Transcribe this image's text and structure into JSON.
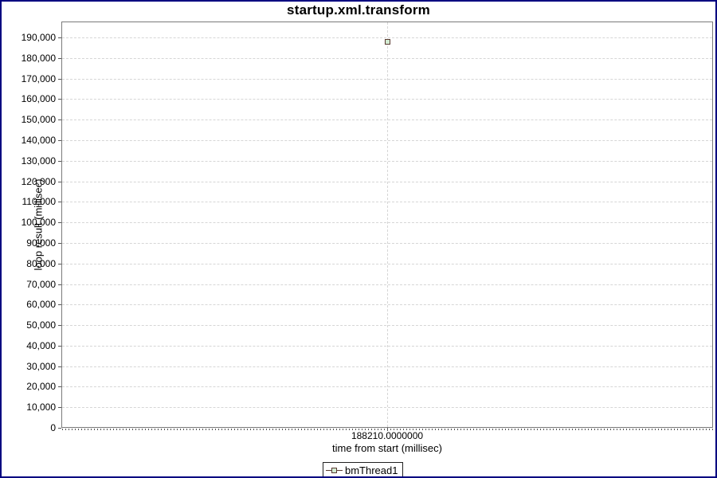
{
  "window": {
    "border_color": "#000080",
    "background": "#ffffff"
  },
  "chart_data": {
    "type": "scatter",
    "title": "startup.xml.transform",
    "xlabel": "time from start (millisec)",
    "ylabel": "loop result (millisec)",
    "grid": true,
    "legend_position": "bottom",
    "xlim": [
      188209.5,
      188210.5
    ],
    "ylim": [
      0,
      197800
    ],
    "x_tick_labels": [
      "188210.0000000"
    ],
    "y_ticks": [
      0,
      10000,
      20000,
      30000,
      40000,
      50000,
      60000,
      70000,
      80000,
      90000,
      100000,
      110000,
      120000,
      130000,
      140000,
      150000,
      160000,
      170000,
      180000,
      190000
    ],
    "series": [
      {
        "name": "bmThread1",
        "marker": "square",
        "marker_stroke": "#5a3c32",
        "marker_fill": "#d2ebd2",
        "points": [
          {
            "x": 188210,
            "y": 188210
          }
        ]
      }
    ]
  },
  "legend": {
    "label": "bmThread1"
  },
  "styles": {
    "grid_color": "#d6d6d6",
    "plot_border_color": "#7a7a7a",
    "tick_color": "#555555",
    "legend_border_color": "#222222"
  }
}
